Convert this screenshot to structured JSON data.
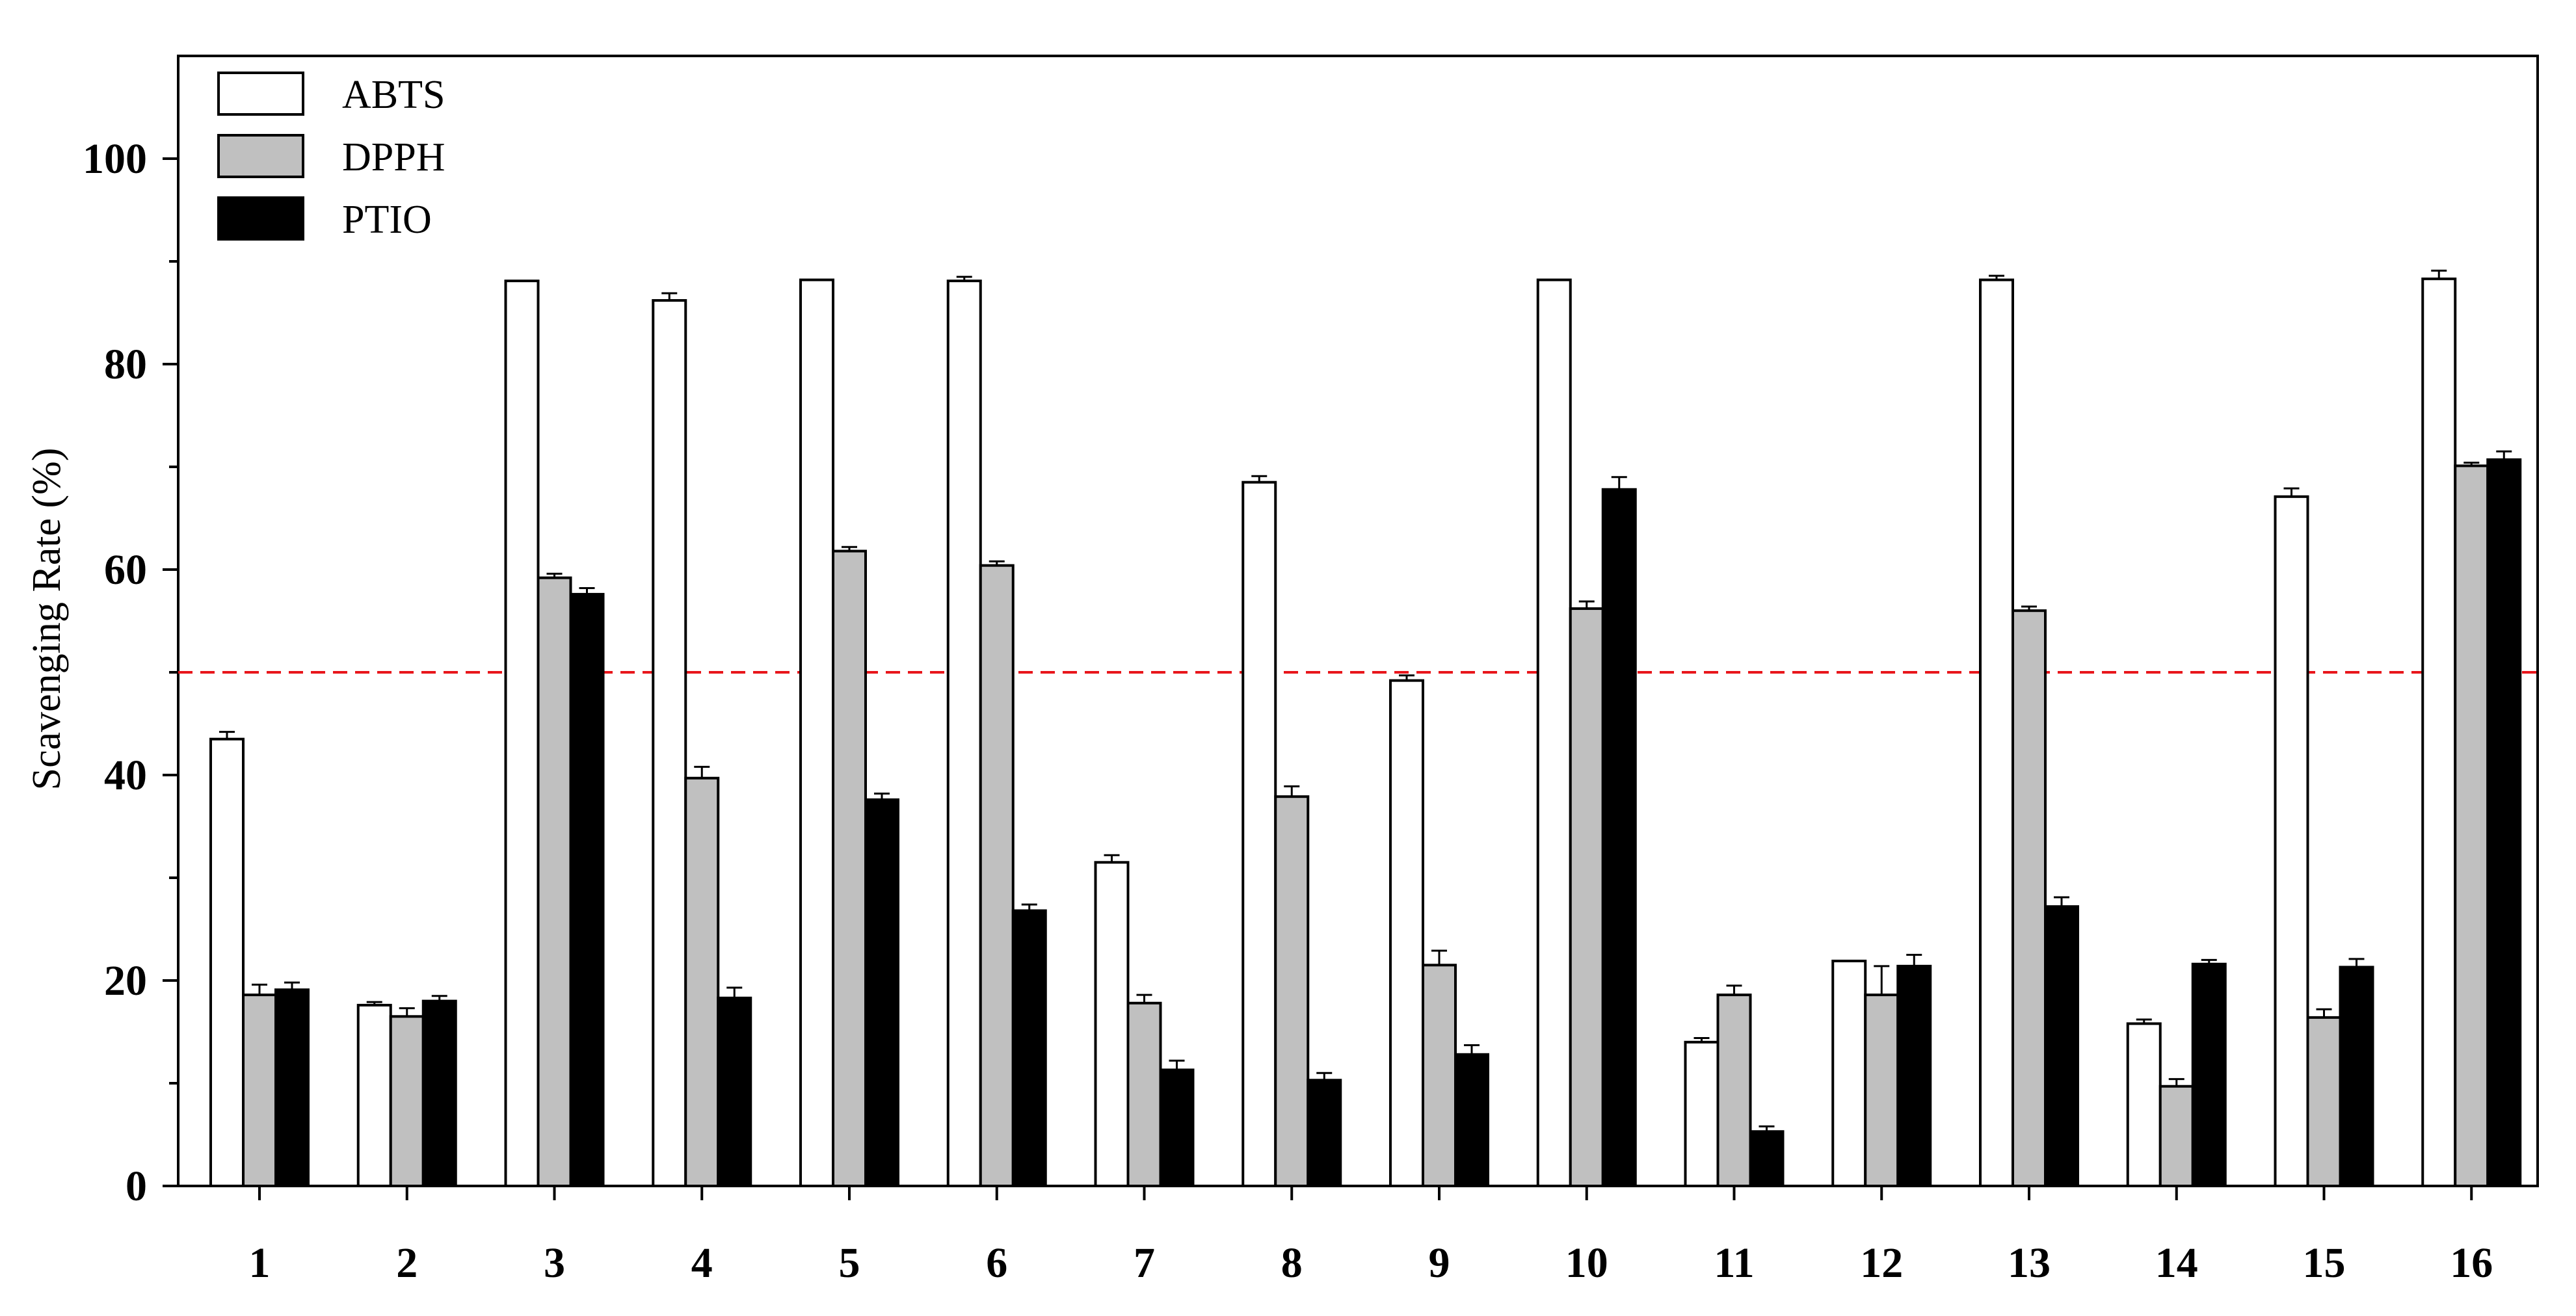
{
  "chart_data": {
    "type": "bar",
    "title": "",
    "xlabel": "",
    "ylabel": "Scavenging Rate (%)",
    "ylim": [
      0,
      110
    ],
    "y_ticks": [
      0,
      20,
      40,
      60,
      80,
      100
    ],
    "y_minor_ticks": [
      10,
      30,
      50,
      70,
      90
    ],
    "grid": false,
    "legend_position": "top-left",
    "categories": [
      "1",
      "2",
      "3",
      "4",
      "5",
      "6",
      "7",
      "8",
      "9",
      "10",
      "11",
      "12",
      "13",
      "14",
      "15",
      "16"
    ],
    "series": [
      {
        "name": "ABTS",
        "fill": "#ffffff",
        "values": [
          43.5,
          17.6,
          88.1,
          86.2,
          88.2,
          88.1,
          31.5,
          68.5,
          49.2,
          88.2,
          14.0,
          21.9,
          88.2,
          15.8,
          67.1,
          88.3
        ],
        "errors": [
          0.7,
          0.3,
          0.0,
          0.7,
          0.0,
          0.4,
          0.7,
          0.6,
          0.5,
          0.0,
          0.4,
          0.0,
          0.4,
          0.4,
          0.8,
          0.8
        ]
      },
      {
        "name": "DPPH",
        "fill": "#c0c0c0",
        "values": [
          18.6,
          16.5,
          59.2,
          39.7,
          61.8,
          60.4,
          17.8,
          37.9,
          21.5,
          56.2,
          18.6,
          18.6,
          56.0,
          9.7,
          16.4,
          70.1
        ],
        "errors": [
          1.0,
          0.8,
          0.4,
          1.1,
          0.4,
          0.4,
          0.8,
          1.0,
          1.4,
          0.7,
          0.9,
          2.8,
          0.4,
          0.7,
          0.8,
          0.3
        ]
      },
      {
        "name": "PTIO",
        "fill": "#000000",
        "values": [
          19.1,
          18.0,
          57.6,
          18.3,
          37.6,
          26.8,
          11.3,
          10.3,
          12.8,
          67.8,
          5.3,
          21.4,
          27.2,
          21.6,
          21.3,
          70.7
        ],
        "errors": [
          0.7,
          0.5,
          0.6,
          1.0,
          0.6,
          0.6,
          0.9,
          0.7,
          0.9,
          1.2,
          0.5,
          1.1,
          0.9,
          0.4,
          0.8,
          0.8
        ]
      }
    ],
    "reference_line": {
      "value": 50,
      "color": "#e8161b",
      "style": "dashed"
    }
  }
}
